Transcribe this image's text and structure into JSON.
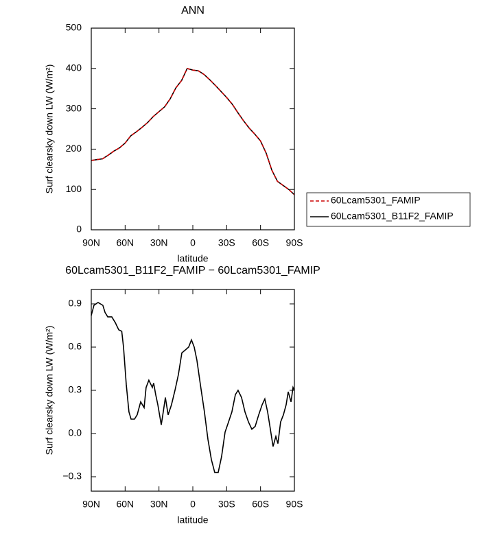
{
  "chart_data": [
    {
      "type": "line",
      "title": "ANN",
      "xlabel": "latitude",
      "ylabel": "Surf clearsky down LW (W/m²)",
      "x": [
        90,
        85,
        80,
        75,
        70,
        65,
        60,
        55,
        50,
        45,
        40,
        35,
        30,
        25,
        20,
        15,
        10,
        5,
        0,
        -5,
        -10,
        -15,
        -20,
        -25,
        -30,
        -35,
        -40,
        -45,
        -50,
        -55,
        -60,
        -65,
        -70,
        -75,
        -80,
        -85,
        -90
      ],
      "series": [
        {
          "name": "60Lcam5301_B11F2_FAMIP",
          "color": "#000000",
          "style": "solid",
          "values": [
            172,
            174,
            176,
            185,
            195,
            203,
            215,
            233,
            243,
            254,
            266,
            281,
            293,
            305,
            325,
            352,
            370,
            400,
            396,
            394,
            385,
            372,
            358,
            343,
            328,
            311,
            290,
            270,
            252,
            237,
            220,
            190,
            148,
            120,
            110,
            100,
            87
          ]
        },
        {
          "name": "60Lcam5301_FAMIP",
          "color": "#cc0000",
          "style": "dashed",
          "values": [
            172,
            174,
            176,
            185,
            195,
            203,
            215,
            233,
            243,
            254,
            266,
            281,
            293,
            305,
            325,
            352,
            370,
            400,
            396,
            394,
            385,
            372,
            358,
            343,
            328,
            311,
            290,
            270,
            252,
            237,
            220,
            190,
            148,
            120,
            110,
            100,
            87
          ]
        }
      ],
      "legend_order": [
        1,
        0
      ],
      "legend": "right",
      "xlim": [
        90,
        -90
      ],
      "xticks": [
        {
          "value": 90,
          "label": "90N"
        },
        {
          "value": 60,
          "label": "60N"
        },
        {
          "value": 30,
          "label": "30N"
        },
        0,
        {
          "value": -30,
          "label": "30S"
        },
        {
          "value": -60,
          "label": "60S"
        },
        {
          "value": -90,
          "label": "90S"
        }
      ],
      "ylim": [
        0,
        500
      ],
      "yticks": [
        0,
        100,
        200,
        300,
        400,
        500
      ]
    },
    {
      "type": "line",
      "title": "60Lcam5301_B11F2_FAMIP − 60Lcam5301_FAMIP",
      "xlabel": "latitude",
      "ylabel": "Surf clearsky down LW (W/m²)",
      "x": [
        90,
        87.6,
        84,
        79.7,
        77.8,
        75.4,
        71.8,
        68.7,
        65.7,
        63,
        61.4,
        59,
        56.6,
        54.7,
        51.7,
        49.3,
        46.2,
        43.2,
        41.4,
        39,
        35.9,
        34.7,
        32.9,
        31,
        28,
        26.2,
        24.3,
        21.9,
        18.9,
        15.8,
        12.8,
        9.7,
        6.7,
        3.7,
        1.2,
        -1.2,
        -3.6,
        -6.7,
        -10.3,
        -13.4,
        -16.4,
        -19.4,
        -22.5,
        -25.5,
        -28.6,
        -31.6,
        -34.6,
        -37.7,
        -40.1,
        -43.2,
        -46.2,
        -49.3,
        -52.3,
        -55.3,
        -58.4,
        -61.4,
        -63.8,
        -66.3,
        -68.7,
        -71.1,
        -73.6,
        -75.4,
        -77.8,
        -80.3,
        -82.7,
        -84.5,
        -87,
        -88.8,
        -90
      ],
      "series": [
        {
          "name": "60Lcam5301_B11F2_FAMIP − 60Lcam5301_FAMIP",
          "color": "#000000",
          "style": "solid",
          "values": [
            0.82,
            0.89,
            0.91,
            0.89,
            0.84,
            0.81,
            0.81,
            0.77,
            0.72,
            0.71,
            0.6,
            0.34,
            0.15,
            0.1,
            0.1,
            0.13,
            0.22,
            0.18,
            0.32,
            0.37,
            0.32,
            0.35,
            0.27,
            0.2,
            0.06,
            0.15,
            0.25,
            0.13,
            0.2,
            0.3,
            0.41,
            0.56,
            0.58,
            0.6,
            0.65,
            0.6,
            0.51,
            0.34,
            0.15,
            -0.04,
            -0.18,
            -0.27,
            -0.27,
            -0.16,
            0.01,
            0.08,
            0.15,
            0.27,
            0.3,
            0.25,
            0.15,
            0.08,
            0.03,
            0.05,
            0.13,
            0.2,
            0.24,
            0.15,
            0.03,
            -0.09,
            -0.02,
            -0.07,
            0.08,
            0.13,
            0.2,
            0.29,
            0.22,
            0.32,
            0.3
          ]
        }
      ],
      "xlim": [
        90,
        -90
      ],
      "xticks": [
        {
          "value": 90,
          "label": "90N"
        },
        {
          "value": 60,
          "label": "60N"
        },
        {
          "value": 30,
          "label": "30N"
        },
        0,
        {
          "value": -30,
          "label": "30S"
        },
        {
          "value": -60,
          "label": "60S"
        },
        {
          "value": -90,
          "label": "90S"
        }
      ],
      "ylim": [
        -0.4,
        1.0
      ],
      "yticks": [
        {
          "value": -0.3,
          "label": "−0.3"
        },
        {
          "value": 0,
          "label": "0.0"
        },
        0.3,
        0.6,
        0.9
      ]
    }
  ]
}
